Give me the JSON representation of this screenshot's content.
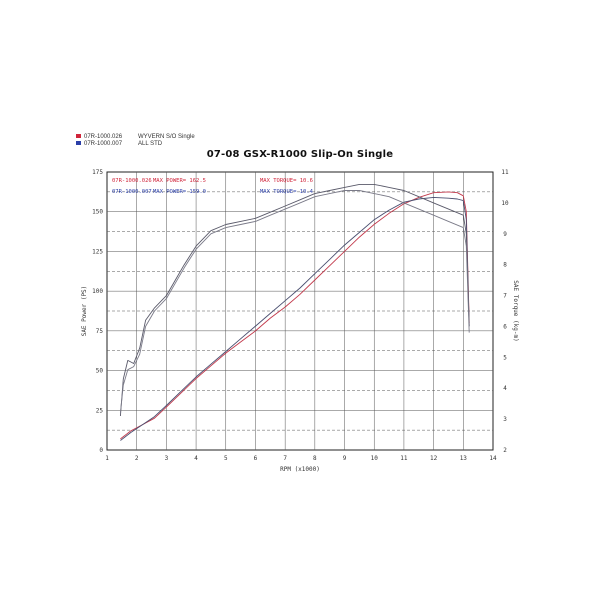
{
  "legend": [
    {
      "code": "07R-1000.026",
      "label": "WYVERN S/O Single",
      "color": "#d0243a"
    },
    {
      "code": "07R-1000.007",
      "label": "ALL STD",
      "color": "#2b3fa8"
    }
  ],
  "chart_data": {
    "type": "line",
    "title": "07-08 GSX-R1000 Slip-On Single",
    "xlabel": "RPM (x1000)",
    "ylabel": "SAE Power (PS)",
    "y2label": "SAE Torque (kg-m)",
    "xlim": [
      1,
      14
    ],
    "ylim": [
      0,
      175
    ],
    "y2lim": [
      2,
      11
    ],
    "x_ticks": [
      1,
      2,
      3,
      4,
      5,
      6,
      7,
      8,
      9,
      10,
      11,
      12,
      13,
      14
    ],
    "y_ticks": [
      0,
      25,
      50,
      75,
      100,
      125,
      150,
      175
    ],
    "y2_ticks": [
      2,
      3,
      4,
      5,
      6,
      7,
      8,
      9,
      10,
      11
    ],
    "grid": true,
    "annotations": [
      {
        "code": "07R-1000.026",
        "power_text": "MAX POWER= 162.5",
        "torque_text": "MAX TORQUE= 10.6",
        "color": "#d0243a"
      },
      {
        "code": "07R-1000.007",
        "power_text": "MAX POWER= 159.0",
        "torque_text": "MAX TORQUE= 10.4",
        "color": "#2b3fa8"
      }
    ],
    "series": [
      {
        "name": "07R-1000.026 power",
        "run": "07R-1000.026",
        "quantity": "power",
        "axis": "left",
        "color": "#c23a4c",
        "x": [
          1.45,
          1.8,
          2.2,
          2.6,
          3.0,
          3.5,
          4.0,
          4.5,
          5.0,
          5.5,
          6.0,
          6.5,
          7.0,
          7.5,
          8.0,
          8.5,
          9.0,
          9.5,
          10.0,
          10.5,
          11.0,
          11.5,
          12.0,
          12.5,
          12.8,
          13.0,
          13.1,
          13.2
        ],
        "y": [
          7,
          12,
          16,
          20,
          27,
          36,
          45,
          53,
          61,
          68,
          75,
          83,
          90,
          98,
          107,
          116,
          125,
          134,
          142,
          149,
          155,
          159,
          162,
          162.5,
          162,
          160,
          150,
          80
        ]
      },
      {
        "name": "07R-1000.007 power",
        "run": "07R-1000.007",
        "quantity": "power",
        "axis": "left",
        "color": "#4a4f70",
        "x": [
          1.45,
          1.8,
          2.2,
          2.6,
          3.0,
          3.5,
          4.0,
          4.5,
          5.0,
          5.5,
          6.0,
          6.5,
          7.0,
          7.5,
          8.0,
          8.5,
          9.0,
          9.5,
          10.0,
          10.5,
          11.0,
          11.5,
          12.0,
          12.5,
          12.8,
          13.0,
          13.1,
          13.2
        ],
        "y": [
          6,
          11,
          16,
          21,
          28,
          37,
          46,
          54,
          62,
          70,
          78,
          86,
          94,
          102,
          111,
          120,
          129,
          137,
          145,
          151,
          156,
          158,
          159,
          158.5,
          158,
          157,
          145,
          78
        ]
      },
      {
        "name": "07R-1000.026 torque",
        "run": "07R-1000.026",
        "quantity": "torque",
        "axis": "right",
        "color": "#5a5a6a",
        "x": [
          1.45,
          1.55,
          1.7,
          1.9,
          2.1,
          2.3,
          2.6,
          3.0,
          3.3,
          3.6,
          4.0,
          4.5,
          5.0,
          5.5,
          6.0,
          6.5,
          7.0,
          7.5,
          8.0,
          8.5,
          9.0,
          9.5,
          10.0,
          10.5,
          11.0,
          11.5,
          12.0,
          12.5,
          13.0,
          13.1,
          13.2
        ],
        "y": [
          3.1,
          4.3,
          4.9,
          4.8,
          5.3,
          6.2,
          6.6,
          7.0,
          7.5,
          8.0,
          8.6,
          9.1,
          9.3,
          9.4,
          9.5,
          9.7,
          9.9,
          10.1,
          10.3,
          10.4,
          10.5,
          10.6,
          10.6,
          10.5,
          10.4,
          10.2,
          10.0,
          9.8,
          9.6,
          9.0,
          6.0
        ]
      },
      {
        "name": "07R-1000.007 torque",
        "run": "07R-1000.007",
        "quantity": "torque",
        "axis": "right",
        "color": "#7a7a88",
        "x": [
          1.45,
          1.55,
          1.7,
          1.9,
          2.1,
          2.3,
          2.6,
          3.0,
          3.3,
          3.6,
          4.0,
          4.5,
          5.0,
          5.5,
          6.0,
          6.5,
          7.0,
          7.5,
          8.0,
          8.5,
          9.0,
          9.5,
          10.0,
          10.5,
          11.0,
          11.5,
          12.0,
          12.5,
          13.0,
          13.1,
          13.2
        ],
        "y": [
          3.2,
          4.1,
          4.6,
          4.7,
          5.1,
          6.0,
          6.5,
          6.9,
          7.4,
          7.9,
          8.5,
          9.0,
          9.2,
          9.3,
          9.4,
          9.6,
          9.8,
          10.0,
          10.2,
          10.3,
          10.4,
          10.4,
          10.3,
          10.2,
          10.0,
          9.8,
          9.6,
          9.4,
          9.2,
          8.6,
          5.8
        ]
      }
    ]
  }
}
